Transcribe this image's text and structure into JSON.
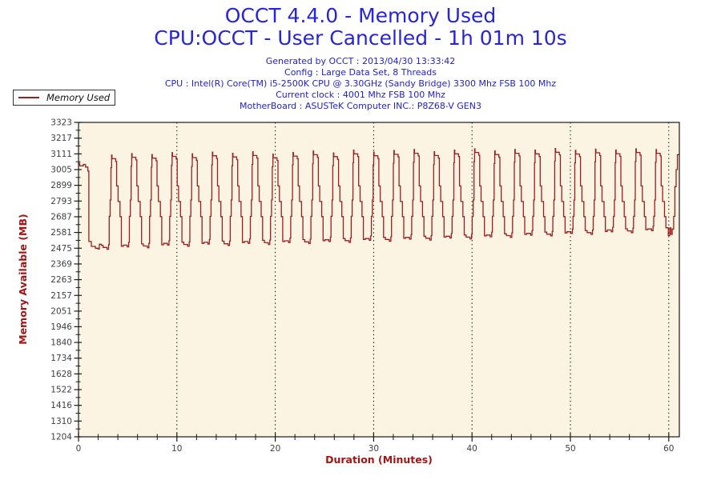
{
  "header": {
    "title_line1": "OCCT 4.4.0 - Memory Used",
    "title_line2": "CPU:OCCT - User Cancelled - 1h 01m 10s",
    "meta_lines": [
      "Generated by OCCT : 2013/04/30 13:33:42",
      "Config : Large Data Set, 8 Threads",
      "CPU : Intel(R) Core(TM) i5-2500K CPU @ 3.30GHz (Sandy Bridge) 3300 Mhz FSB 100 Mhz",
      "Current clock : 4001 Mhz FSB 100 Mhz",
      "MotherBoard : ASUSTeK Computer INC.: P8Z68-V GEN3"
    ]
  },
  "legend": {
    "label": "Memory Used"
  },
  "colors": {
    "title_blue": "#2626d8",
    "meta_blue": "#2222c8",
    "axis_label_red": "#a31515",
    "tick_text": "#404040",
    "plot_background": "#fcf4e2",
    "series_line": "#9c1d1d",
    "frame": "#1a1a1a"
  },
  "chart_data": {
    "type": "line",
    "title": "OCCT 4.4.0 - Memory Used",
    "subtitle": "CPU:OCCT - User Cancelled - 1h 01m 10s",
    "xlabel": "Duration (Minutes)",
    "ylabel": "Memory Available (MB)",
    "xlim": [
      0,
      61.07
    ],
    "ylim": [
      1204,
      3323
    ],
    "y_ticks": [
      3323,
      3217,
      3111,
      3005,
      2899,
      2793,
      2687,
      2581,
      2475,
      2369,
      2263,
      2157,
      2051,
      1946,
      1840,
      1734,
      1628,
      1522,
      1416,
      1310,
      1204
    ],
    "x_ticks_major": [
      0,
      10,
      20,
      30,
      40,
      50,
      60
    ],
    "x_minor_step": 2,
    "grid": "vertical dotted lines at major x ticks",
    "legend_position": "top-left",
    "series": [
      {
        "name": "Memory Used",
        "color": "#9c1d1d",
        "interpolation": "step-after",
        "description": "Square-wave oscillation of available memory between ~2480-2615 MB lows and ~3080-3145 MB highs, period ~2.05 min, over 61 minutes.",
        "intro_steps": [
          [
            0,
            3048
          ],
          [
            0.12,
            3030
          ],
          [
            0.5,
            3040
          ],
          [
            0.72,
            3022
          ],
          [
            0.95,
            2995
          ],
          [
            1.05,
            2520
          ],
          [
            1.3,
            2487
          ],
          [
            1.72,
            2475
          ],
          [
            1.98,
            2470
          ],
          [
            2.12,
            2502
          ],
          [
            2.32,
            2495
          ]
        ],
        "cycle_start": 2.5,
        "cycle_period": 2.05,
        "cycle_rel_steps": [
          [
            0.0,
            "l",
            0
          ],
          [
            0.4,
            "l",
            -12
          ],
          [
            0.55,
            "l",
            18
          ],
          [
            0.62,
            "c",
            2690
          ],
          [
            0.72,
            "c",
            2800
          ],
          [
            0.8,
            "h",
            -60
          ],
          [
            0.86,
            "h",
            25
          ],
          [
            0.9,
            "h",
            0
          ],
          [
            1.28,
            "h",
            -18
          ],
          [
            1.38,
            "c",
            2895
          ],
          [
            1.52,
            "c",
            2790
          ],
          [
            1.72,
            "c",
            2688
          ],
          [
            1.86,
            "l",
            8
          ]
        ],
        "cycle_highs": [
          3078,
          3088,
          3082,
          3094,
          3086,
          3098,
          3090,
          3100,
          3085,
          3096,
          3105,
          3092,
          3111,
          3098,
          3108,
          3115,
          3100,
          3111,
          3120,
          3106,
          3115,
          3111,
          3122,
          3110,
          3118,
          3112,
          3120,
          3115
        ],
        "cycle_lows": [
          2480,
          2496,
          2490,
          2508,
          2500,
          2515,
          2505,
          2520,
          2512,
          2525,
          2518,
          2532,
          2526,
          2540,
          2534,
          2548,
          2542,
          2556,
          2550,
          2564,
          2560,
          2575,
          2570,
          2586,
          2580,
          2598,
          2592,
          2605
        ],
        "end_steps": [
          [
            59.95,
            2560
          ],
          [
            60.1,
            2612
          ],
          [
            60.22,
            2568
          ],
          [
            60.35,
            2604
          ],
          [
            60.5,
            2690
          ],
          [
            60.62,
            2890
          ],
          [
            60.75,
            3005
          ],
          [
            60.88,
            3105
          ],
          [
            61.05,
            3111
          ]
        ]
      }
    ]
  }
}
